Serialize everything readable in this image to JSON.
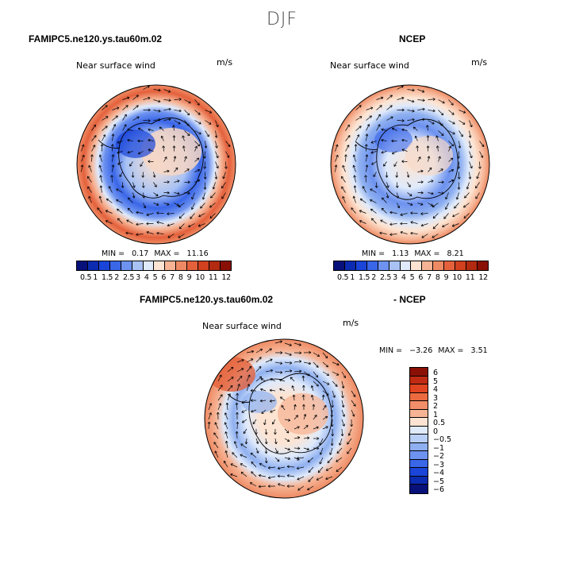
{
  "season": "DJF",
  "colors": {
    "abs_scale": [
      "#08107a",
      "#0b2bb0",
      "#1a45d8",
      "#3a66e8",
      "#6d92ef",
      "#a8c2f4",
      "#dfeafb",
      "#fde4d2",
      "#f6b495",
      "#ee8a63",
      "#e4613c",
      "#d1401f",
      "#b22a10",
      "#8a1006"
    ],
    "diff_scale": [
      "#8a1006",
      "#c02a12",
      "#e04420",
      "#ec6a40",
      "#f18e6a",
      "#f6b495",
      "#fde4d2",
      "#dfeafb",
      "#b9cff6",
      "#8fb0f0",
      "#6d92ef",
      "#3a66e8",
      "#1a45d8",
      "#0b2bb0",
      "#08107a"
    ],
    "land_line": "#000000"
  },
  "panel_left": {
    "title": "FAMIPC5.ne120.ys.tau60m.02",
    "subtitle": "Near surface wind",
    "units": "m/s",
    "min_label": "MIN =",
    "min_value": "0.17",
    "max_label": "MAX =",
    "max_value": "11.16",
    "colorbar_labels": [
      "0.5",
      "1",
      "1.5",
      "2",
      "2.5",
      "3",
      "4",
      "5",
      "6",
      "7",
      "8",
      "9",
      "10",
      "11",
      "12"
    ]
  },
  "panel_right": {
    "title": "NCEP",
    "subtitle": "Near surface wind",
    "units": "m/s",
    "min_label": "MIN =",
    "min_value": "1.13",
    "max_label": "MAX =",
    "max_value": "8.21",
    "colorbar_labels": [
      "0.5",
      "1",
      "1.5",
      "2",
      "2.5",
      "3",
      "4",
      "5",
      "6",
      "7",
      "8",
      "9",
      "10",
      "11",
      "12"
    ]
  },
  "panel_bottom": {
    "title_left": "FAMIPC5.ne120.ys.tau60m.02",
    "title_right": "- NCEP",
    "subtitle": "Near surface wind",
    "units": "m/s",
    "min_label": "MIN =",
    "min_value": "−3.26",
    "max_label": "MAX =",
    "max_value": "3.51",
    "colorbar_labels": [
      "6",
      "5",
      "4",
      "3",
      "2",
      "1",
      "0.5",
      "0",
      "−0.5",
      "−1",
      "−2",
      "−3",
      "−4",
      "−5",
      "−6"
    ]
  }
}
